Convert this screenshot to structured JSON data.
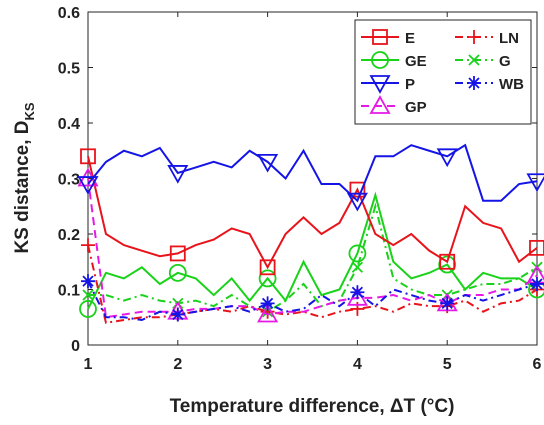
{
  "chart_data": {
    "type": "line",
    "xlabel": "Temperature difference, ΔT (°C)",
    "ylabel": "KS distance, D",
    "ylabel_subscript": "KS",
    "x": [
      1,
      1.2,
      1.4,
      1.6,
      1.8,
      2,
      2.2,
      2.4,
      2.6,
      2.8,
      3,
      3.2,
      3.4,
      3.6,
      3.8,
      4,
      4.2,
      4.4,
      4.6,
      4.8,
      5,
      5.2,
      5.4,
      5.6,
      5.8,
      6
    ],
    "xlim": [
      1,
      6
    ],
    "xticks": [
      1,
      2,
      3,
      4,
      5,
      6
    ],
    "ylim": [
      0,
      0.6
    ],
    "yticks": [
      0,
      0.1,
      0.2,
      0.3,
      0.4,
      0.5,
      0.6
    ],
    "grid": false,
    "legend_loc": "upper right",
    "series": [
      {
        "name": "E",
        "color": "#e8141b",
        "linestyle": "solid",
        "marker": "square",
        "values": [
          0.34,
          0.2,
          0.18,
          0.17,
          0.16,
          0.165,
          0.18,
          0.19,
          0.21,
          0.2,
          0.14,
          0.2,
          0.23,
          0.2,
          0.22,
          0.28,
          0.2,
          0.18,
          0.2,
          0.17,
          0.15,
          0.25,
          0.22,
          0.21,
          0.15,
          0.175
        ]
      },
      {
        "name": "LN",
        "color": "#e8141b",
        "linestyle": "dashdot",
        "marker": "plus",
        "values": [
          0.18,
          0.04,
          0.045,
          0.05,
          0.05,
          0.055,
          0.06,
          0.065,
          0.06,
          0.07,
          0.06,
          0.055,
          0.06,
          0.05,
          0.06,
          0.065,
          0.07,
          0.06,
          0.075,
          0.07,
          0.07,
          0.08,
          0.06,
          0.075,
          0.08,
          0.1
        ]
      },
      {
        "name": "GE",
        "color": "#19d219",
        "linestyle": "solid",
        "marker": "circle",
        "values": [
          0.065,
          0.13,
          0.12,
          0.14,
          0.11,
          0.13,
          0.12,
          0.09,
          0.12,
          0.08,
          0.12,
          0.08,
          0.15,
          0.09,
          0.1,
          0.165,
          0.27,
          0.15,
          0.12,
          0.13,
          0.145,
          0.1,
          0.13,
          0.12,
          0.12,
          0.1
        ]
      },
      {
        "name": "G",
        "color": "#19d219",
        "linestyle": "dashdot",
        "marker": "x",
        "values": [
          0.09,
          0.09,
          0.08,
          0.09,
          0.08,
          0.075,
          0.08,
          0.07,
          0.09,
          0.07,
          0.06,
          0.08,
          0.11,
          0.07,
          0.08,
          0.14,
          0.25,
          0.12,
          0.1,
          0.09,
          0.09,
          0.1,
          0.11,
          0.11,
          0.12,
          0.14
        ]
      },
      {
        "name": "P",
        "color": "#1414e6",
        "linestyle": "solid",
        "marker": "triangle-down",
        "values": [
          0.29,
          0.33,
          0.35,
          0.34,
          0.355,
          0.31,
          0.32,
          0.33,
          0.32,
          0.35,
          0.33,
          0.3,
          0.35,
          0.29,
          0.29,
          0.26,
          0.34,
          0.34,
          0.36,
          0.35,
          0.34,
          0.36,
          0.26,
          0.26,
          0.29,
          0.295
        ]
      },
      {
        "name": "WB",
        "color": "#1414e6",
        "linestyle": "dashdot",
        "marker": "asterisk",
        "values": [
          0.115,
          0.05,
          0.05,
          0.045,
          0.06,
          0.055,
          0.06,
          0.065,
          0.07,
          0.06,
          0.075,
          0.06,
          0.065,
          0.09,
          0.07,
          0.095,
          0.07,
          0.1,
          0.09,
          0.08,
          0.075,
          0.09,
          0.08,
          0.09,
          0.1,
          0.11
        ]
      },
      {
        "name": "GP",
        "color": "#e619e6",
        "linestyle": "dashed",
        "marker": "triangle-up",
        "values": [
          0.3,
          0.05,
          0.055,
          0.06,
          0.06,
          0.06,
          0.065,
          0.065,
          0.07,
          0.07,
          0.055,
          0.06,
          0.06,
          0.07,
          0.08,
          0.085,
          0.085,
          0.09,
          0.08,
          0.09,
          0.075,
          0.09,
          0.09,
          0.1,
          0.1,
          0.125
        ]
      }
    ]
  }
}
